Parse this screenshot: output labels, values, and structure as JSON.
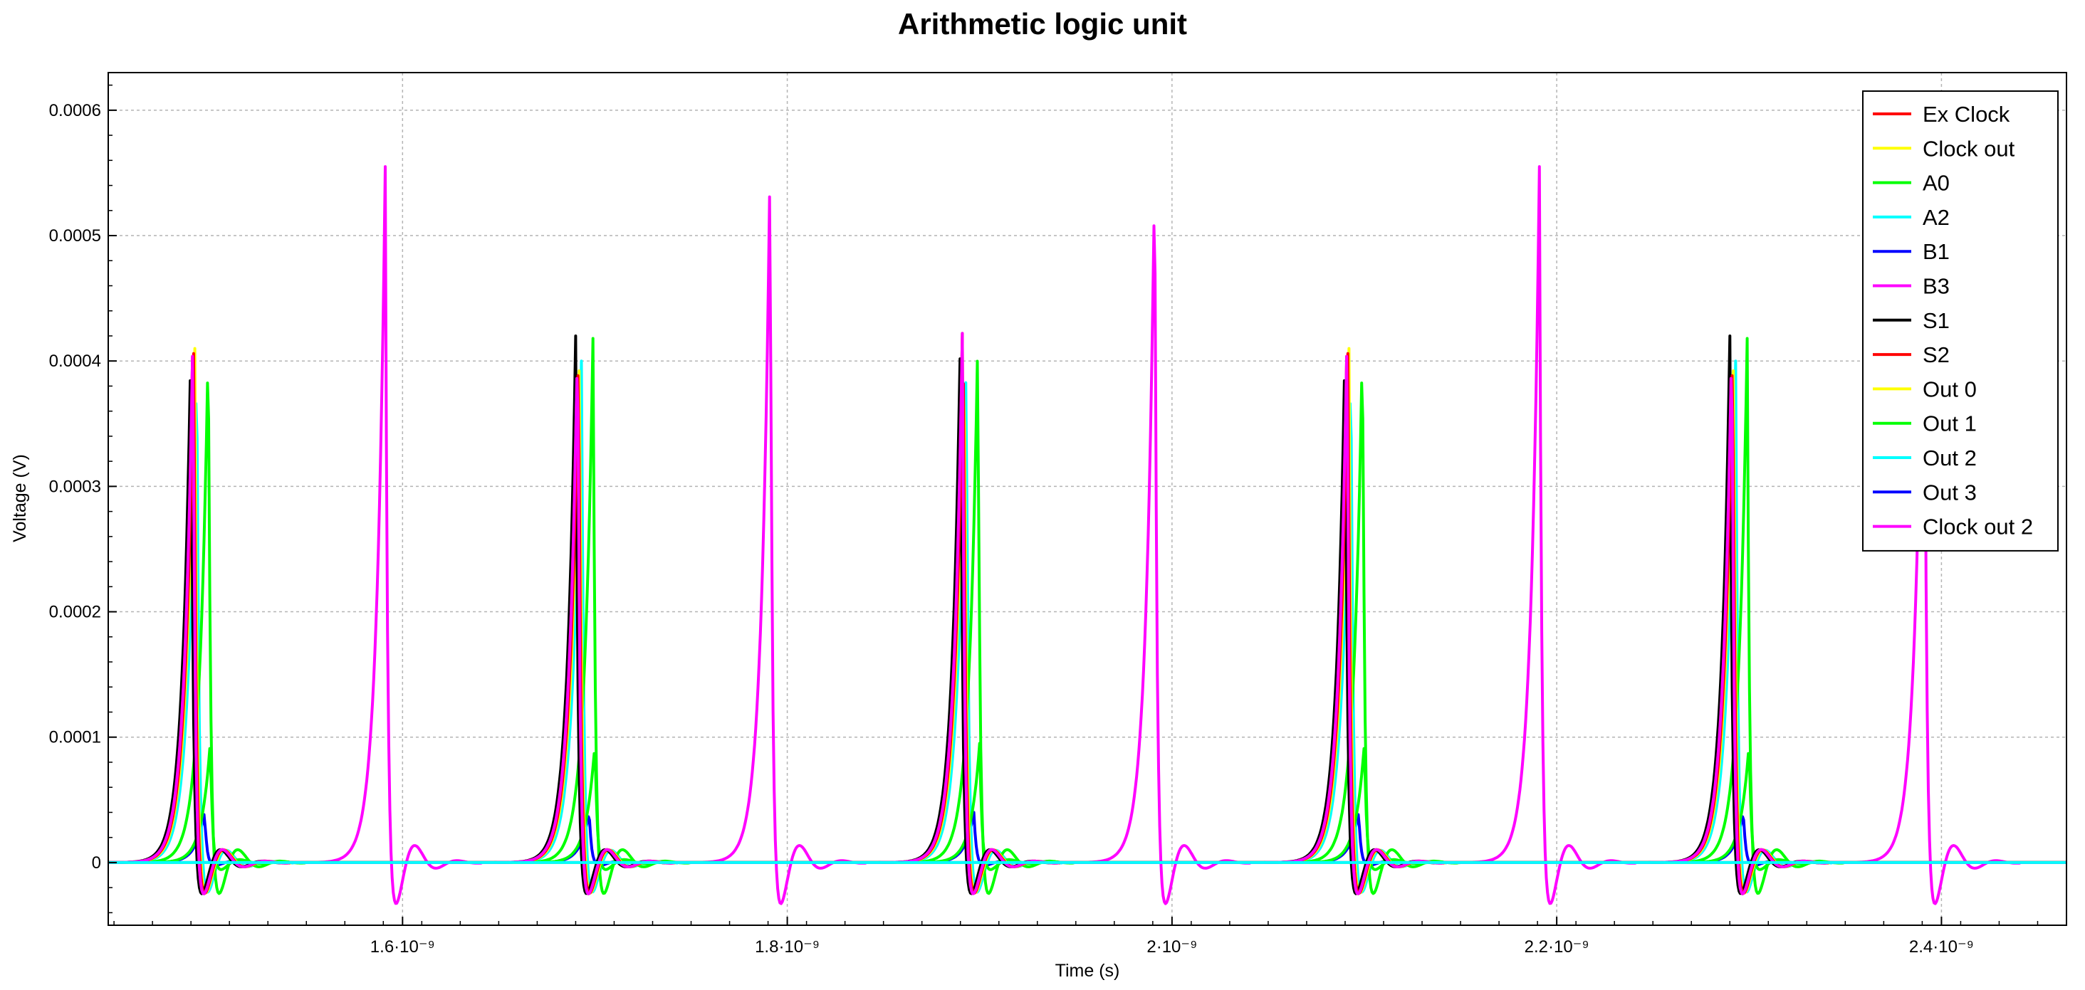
{
  "chart_data": {
    "type": "line",
    "title": "Arithmetic logic unit",
    "xlabel": "Time (s)",
    "ylabel": "Voltage (V)",
    "xlim": [
      1.447e-09,
      2.465e-09
    ],
    "ylim": [
      -5e-05,
      0.00063
    ],
    "x_ticks": [
      {
        "value": 1.6e-09,
        "label": "1.6·10⁻⁹"
      },
      {
        "value": 1.8e-09,
        "label": "1.8·10⁻⁹"
      },
      {
        "value": 2e-09,
        "label": "2·10⁻⁹"
      },
      {
        "value": 2.2e-09,
        "label": "2.2·10⁻⁹"
      },
      {
        "value": 2.4e-09,
        "label": "2.4·10⁻⁹"
      }
    ],
    "y_ticks": [
      {
        "value": 0,
        "label": "0"
      },
      {
        "value": 0.0001,
        "label": "0.0001"
      },
      {
        "value": 0.0002,
        "label": "0.0002"
      },
      {
        "value": 0.0003,
        "label": "0.0003"
      },
      {
        "value": 0.0004,
        "label": "0.0004"
      },
      {
        "value": 0.0005,
        "label": "0.0005"
      },
      {
        "value": 0.0006,
        "label": "0.0006"
      }
    ],
    "grid": true,
    "legend_position": "top-right",
    "series": [
      {
        "name": "Ex Clock",
        "color": "#ff0000",
        "spike_peaks_x": [
          1.491e-09,
          1.691e-09,
          1.891e-09,
          2.091e-09,
          2.291e-09
        ],
        "spike_peak_y": 0.000422
      },
      {
        "name": "Clock out",
        "color": "#ffff00",
        "spike_peaks_x": [
          1.492e-09,
          1.692e-09,
          1.892e-09,
          2.092e-09,
          2.292e-09
        ],
        "spike_peak_y": 0.00041
      },
      {
        "name": "A0",
        "color": "#00ff00",
        "spike_peaks_x": [
          1.499e-09,
          1.699e-09,
          1.899e-09,
          2.099e-09,
          2.299e-09
        ],
        "spike_peak_y": 0.000418
      },
      {
        "name": "A2",
        "color": "#00ffff",
        "spike_peaks_x": [
          1.493e-09,
          1.693e-09,
          1.893e-09,
          2.093e-09,
          2.293e-09
        ],
        "spike_peak_y": 0.0004
      },
      {
        "name": "B1",
        "color": "#0000ff",
        "spike_peaks_x": [
          1.497e-09,
          1.697e-09,
          1.897e-09,
          2.097e-09,
          2.297e-09
        ],
        "spike_peak_y": 4e-05
      },
      {
        "name": "B3",
        "color": "#ff00ff",
        "spike_peaks_x": [
          1.491e-09,
          1.691e-09,
          1.891e-09,
          2.091e-09,
          2.291e-09
        ],
        "spike_peak_y": 0.000422
      },
      {
        "name": "S1",
        "color": "#000000",
        "spike_peaks_x": [
          1.49e-09,
          1.69e-09,
          1.89e-09,
          2.09e-09,
          2.29e-09
        ],
        "spike_peak_y": 0.00042
      },
      {
        "name": "S2",
        "color": "#ff0000",
        "spike_peaks_x": [
          1.4915e-09,
          1.6915e-09,
          1.8915e-09,
          2.0915e-09,
          2.2915e-09
        ],
        "spike_peak_y": 0.000415
      },
      {
        "name": "Out 0",
        "color": "#ffff00",
        "spike_peaks_x": [],
        "spike_peak_y": 0
      },
      {
        "name": "Out 1",
        "color": "#00ff00",
        "spike_peaks_x": [
          1.5e-09,
          1.7e-09,
          1.9e-09,
          2.1e-09,
          2.3e-09
        ],
        "spike_peak_y": 9.5e-05
      },
      {
        "name": "Out 2",
        "color": "#00ffff",
        "spike_peaks_x": [],
        "spike_peak_y": 0
      },
      {
        "name": "Out 3",
        "color": "#0000ff",
        "spike_peaks_x": [],
        "spike_peak_y": 0
      },
      {
        "name": "Clock out 2",
        "color": "#ff00ff",
        "spike_peaks_x": [
          1.591e-09,
          1.791e-09,
          1.991e-09,
          2.191e-09,
          2.391e-09
        ],
        "spike_peak_y": 0.000555
      }
    ]
  }
}
